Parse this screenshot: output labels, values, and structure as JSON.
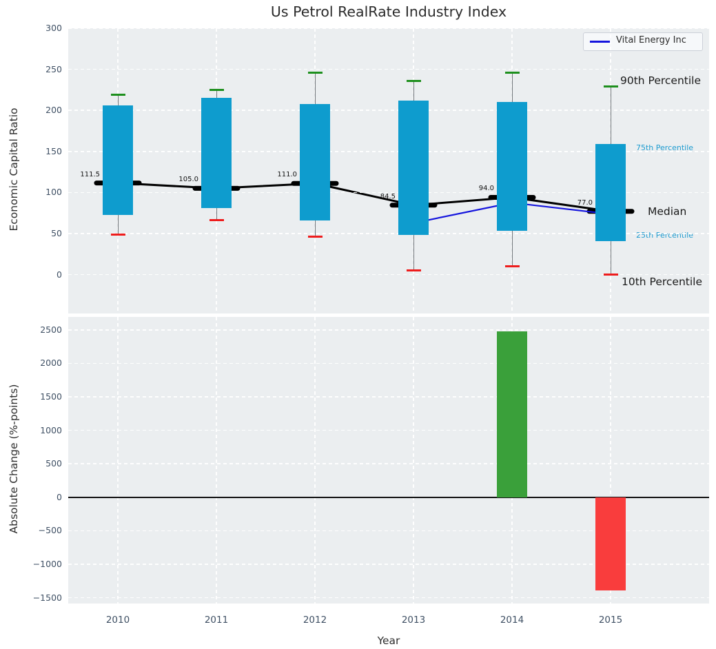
{
  "title": "Us Petrol RealRate Industry Index",
  "legend": {
    "label": "Vital Energy Inc"
  },
  "annotations": {
    "p90": "90th Percentile",
    "p75": "75th Percentile",
    "median": "Median",
    "p25": "25th Percentile",
    "p10": "10th Percentile"
  },
  "colors": {
    "box": "#0e9cce",
    "p90_cap": "#1d8f1d",
    "p10_cap": "#ee1c1c",
    "whisker": "#70757a",
    "median": "#000000",
    "vital": "#1414dd",
    "bar_positive": "#3aa03a",
    "bar_negative": "#f93d3d",
    "axes_bg": "#ebeef0",
    "tick": "#3e4f63",
    "blue_label": "#1e9cd0",
    "zero_line": "#111111"
  },
  "chart_data": [
    {
      "type": "boxplot",
      "panel": "top",
      "title": "Us Petrol RealRate Industry Index",
      "ylabel": "Economic Capital Ratio",
      "categories": [
        "2010",
        "2011",
        "2012",
        "2013",
        "2014",
        "2015"
      ],
      "yticks": [
        "300",
        "250",
        "200",
        "150",
        "100",
        "50",
        "0"
      ],
      "ylim": [
        -47,
        300
      ],
      "grid": true,
      "legend_position": "upper right",
      "series": {
        "p90": [
          219,
          225,
          246,
          236,
          246,
          229
        ],
        "p75": [
          206,
          215,
          208,
          212,
          210,
          159
        ],
        "median": [
          111.5,
          105.0,
          111.0,
          84.5,
          94.0,
          77.0
        ],
        "p25": [
          73,
          81,
          66,
          48,
          53,
          41
        ],
        "p10": [
          49,
          66,
          46,
          5,
          10,
          0
        ]
      },
      "median_labels": [
        "111.5",
        "105.0",
        "111.0",
        "84.5",
        "94.0",
        "77.0"
      ],
      "overlay_line": {
        "name": "Vital Energy Inc",
        "year_indices": [
          3,
          4,
          5
        ],
        "values": [
          62.7,
          87.5,
          73.6
        ]
      }
    },
    {
      "type": "bar",
      "panel": "bottom",
      "ylabel": "Absolute Change (%-points)",
      "xlabel": "Year",
      "categories": [
        "2010",
        "2011",
        "2012",
        "2013",
        "2014",
        "2015"
      ],
      "yticks": [
        "2500",
        "2000",
        "1500",
        "1000",
        "500",
        "0",
        "−500",
        "−1000",
        "−1500"
      ],
      "ylim": [
        -1586,
        2703
      ],
      "grid": true,
      "values": [
        null,
        null,
        null,
        null,
        2480,
        -1390
      ]
    }
  ]
}
